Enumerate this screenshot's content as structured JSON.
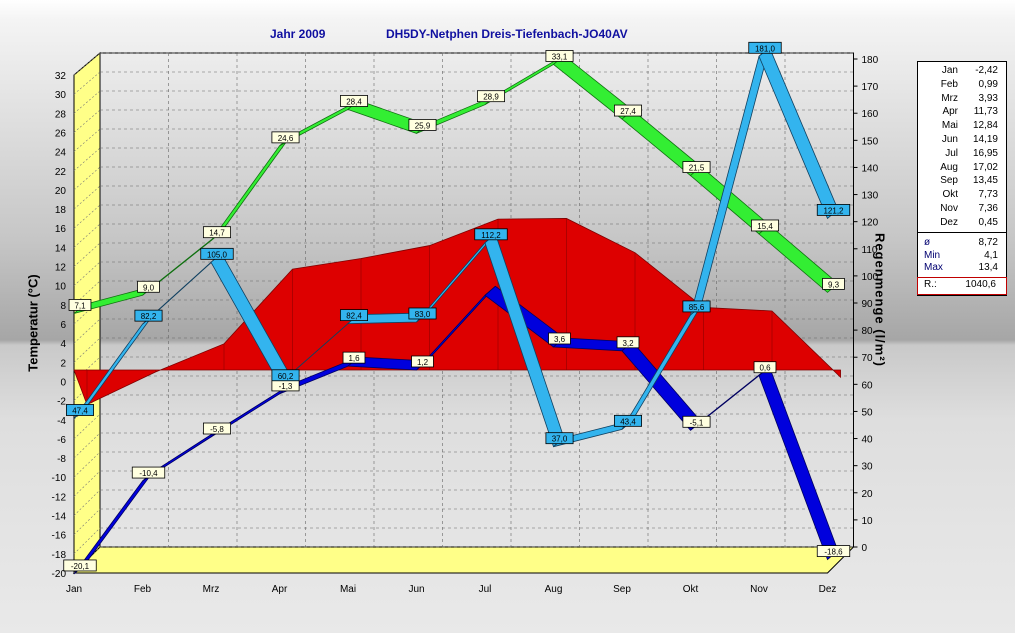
{
  "title": {
    "year": "Jahr  2009",
    "station": "DH5DY-Netphen Dreis-Tiefenbach-JO40AV"
  },
  "axes": {
    "left_label": "Temperatur  (°C)",
    "right_label": "Regenmenge  (l/m²)"
  },
  "colors": {
    "max_temp": "#33ee33",
    "avg_temp": "#dd0000",
    "min_temp": "#0000dd",
    "rain": "#33b4ee",
    "wall": "#ffff88"
  },
  "chart_data": {
    "type": "line",
    "categories": [
      "Jan",
      "Feb",
      "Mrz",
      "Apr",
      "Mai",
      "Jun",
      "Jul",
      "Aug",
      "Sep",
      "Okt",
      "Nov",
      "Dez"
    ],
    "y_left": {
      "min": -20,
      "max": 32,
      "step": 2,
      "ticks": [
        "-20",
        "-18",
        "-16",
        "-14",
        "-12",
        "-10",
        "-8",
        "-6",
        "-4",
        "-2",
        "0",
        "2",
        "4",
        "6",
        "8",
        "10",
        "12",
        "14",
        "16",
        "18",
        "20",
        "22",
        "24",
        "26",
        "28",
        "30",
        "32"
      ]
    },
    "y_right": {
      "min": 0,
      "max": 180,
      "step": 10,
      "ticks": [
        "0",
        "10",
        "20",
        "30",
        "40",
        "50",
        "60",
        "70",
        "80",
        "90",
        "100",
        "110",
        "120",
        "130",
        "140",
        "150",
        "160",
        "170",
        "180"
      ]
    },
    "series": [
      {
        "values": [
          7.1,
          9.0,
          14.7,
          24.6,
          28.4,
          25.9,
          28.9,
          33.1,
          27.4,
          21.5,
          15.4,
          9.3
        ],
        "labels": [
          "7,1",
          "9,0",
          "14,7",
          "24,6",
          "28,4",
          "25,9",
          "28,9",
          "33,1",
          "27,4",
          "21,5",
          "15,4",
          "9,3"
        ]
      },
      {
        "values": [
          -2.42,
          0.99,
          3.93,
          11.73,
          12.84,
          14.19,
          16.95,
          17.02,
          13.45,
          7.73,
          7.36,
          0.45
        ]
      },
      {
        "values": [
          -20.1,
          -10.4,
          -5.8,
          -1.3,
          1.6,
          1.2,
          9.0,
          3.6,
          3.2,
          -5.1,
          0.6,
          -18.6
        ],
        "labels": [
          "-20,1",
          "-10,4",
          "-5,8",
          "-1,3",
          "1,6",
          "1,2",
          "",
          "3,6",
          "3,2",
          "-5,1",
          "0,6",
          "-18,6"
        ]
      },
      {
        "axis": "right",
        "values": [
          47.4,
          82.2,
          105.0,
          60.2,
          82.4,
          83.0,
          112.2,
          37.0,
          43.4,
          85.6,
          181.0,
          121.2
        ],
        "labels": [
          "47,4",
          "82,2",
          "105,0",
          "60,2",
          "82,4",
          "83,0",
          "112,2",
          "37,0",
          "43,4",
          "85,6",
          "181,0",
          "121,2"
        ]
      }
    ]
  },
  "legend": {
    "months": [
      {
        "m": "Jan",
        "v": "-2,42"
      },
      {
        "m": "Feb",
        "v": "0,99"
      },
      {
        "m": "Mrz",
        "v": "3,93"
      },
      {
        "m": "Apr",
        "v": "11,73"
      },
      {
        "m": "Mai",
        "v": "12,84"
      },
      {
        "m": "Jun",
        "v": "14,19"
      },
      {
        "m": "Jul",
        "v": "16,95"
      },
      {
        "m": "Aug",
        "v": "17,02"
      },
      {
        "m": "Sep",
        "v": "13,45"
      },
      {
        "m": "Okt",
        "v": "7,73"
      },
      {
        "m": "Nov",
        "v": "7,36"
      },
      {
        "m": "Dez",
        "v": "0,45"
      }
    ],
    "stats": [
      {
        "m": "ø",
        "v": "8,72"
      },
      {
        "m": "Min",
        "v": "4,1"
      },
      {
        "m": "Max",
        "v": "13,4"
      }
    ],
    "rain_sum": {
      "m": "R.:",
      "v": "1040,6"
    }
  }
}
